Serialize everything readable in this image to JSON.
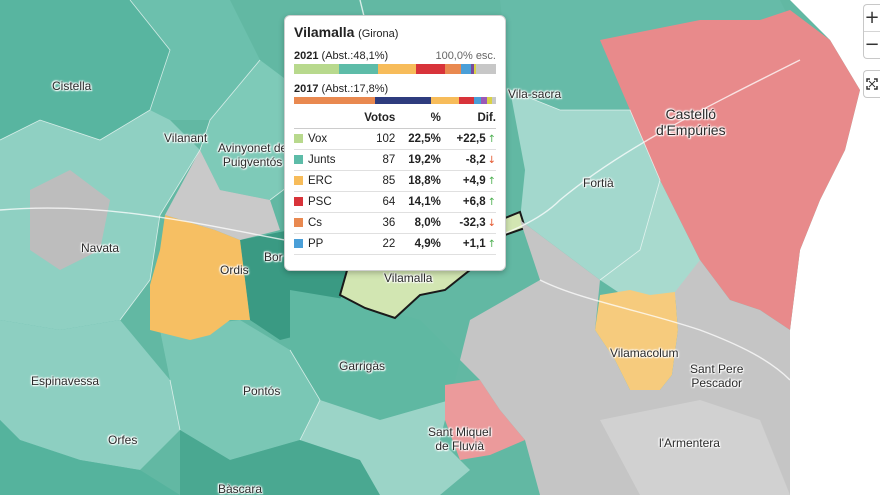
{
  "colors": {
    "vox": "#b8d98d",
    "junts": "#5dbca8",
    "erc": "#f7bc5a",
    "psc": "#d8333a",
    "cs": "#e98950",
    "pp": "#4a9fd8",
    "other": "#c7c7c7",
    "sea": "#ffffff",
    "up_arrow": "#4caf50",
    "down_arrow": "#e4572e"
  },
  "map": {
    "labels": {
      "cistella": "Cistella",
      "vila_sacra": "Vila-sacra",
      "castello": "Castelló\nd'Empúries",
      "vilanant": "Vilanant",
      "avinyonet": "Avinyonet de\nPuigventós",
      "fortia": "Fortià",
      "navata": "Navata",
      "ordis": "Ordis",
      "borrassa": "Bor",
      "vilamalla": "Vilamalla",
      "vilamacolum": "Vilamacolum",
      "garrigas": "Garrigàs",
      "espinavessa": "Espinavessa",
      "pontos": "Pontós",
      "sant_pere": "Sant Pere\nPescador",
      "orfes": "Orfes",
      "sant_miquel": "Sant Miquel\nde Fluvià",
      "armentera": "l'Armentera",
      "bascara": "Bàscara"
    }
  },
  "controls": {
    "zoom_in": "+",
    "zoom_out": "−",
    "fullscreen_icon": "fullscreen-icon"
  },
  "tooltip": {
    "municipality": "Vilamalla",
    "province": "(Girona)",
    "y2021": {
      "label": "2021",
      "abst": "(Abst.:48,1%)",
      "scrutinized": "100,0% esc."
    },
    "y2017": {
      "label": "2017",
      "abst": "(Abst.:17,8%)"
    },
    "headers": {
      "party": "",
      "votes": "Votos",
      "pct": "%",
      "dif": "Dif."
    },
    "rows": [
      {
        "party": "Vox",
        "votes": "102",
        "pct": "22,5%",
        "dif": "+22,5",
        "trend": "up",
        "color": "#b8d98d"
      },
      {
        "party": "Junts",
        "votes": "87",
        "pct": "19,2%",
        "dif": "-8,2",
        "trend": "down",
        "color": "#5dbca8"
      },
      {
        "party": "ERC",
        "votes": "85",
        "pct": "18,8%",
        "dif": "+4,9",
        "trend": "up",
        "color": "#f7bc5a"
      },
      {
        "party": "PSC",
        "votes": "64",
        "pct": "14,1%",
        "dif": "+6,8",
        "trend": "up",
        "color": "#d8333a"
      },
      {
        "party": "Cs",
        "votes": "36",
        "pct": "8,0%",
        "dif": "-32,3",
        "trend": "down",
        "color": "#e98950"
      },
      {
        "party": "PP",
        "votes": "22",
        "pct": "4,9%",
        "dif": "+1,1",
        "trend": "up",
        "color": "#4a9fd8"
      }
    ],
    "bar_2021": [
      {
        "color": "#b8d98d",
        "share": 22.5
      },
      {
        "color": "#5dbca8",
        "share": 19.2
      },
      {
        "color": "#f7bc5a",
        "share": 18.8
      },
      {
        "color": "#d8333a",
        "share": 14.1
      },
      {
        "color": "#e98950",
        "share": 8.0
      },
      {
        "color": "#4a9fd8",
        "share": 4.9
      },
      {
        "color": "#7b4a9b",
        "share": 1.5
      },
      {
        "color": "#d9d247",
        "share": 1.2
      },
      {
        "color": "#c7c7c7",
        "share": 9.8
      }
    ],
    "bar_2017": [
      {
        "color": "#e98950",
        "share": 40.3
      },
      {
        "color": "#2e3c7e",
        "share": 27.4
      },
      {
        "color": "#f7bc5a",
        "share": 13.9
      },
      {
        "color": "#d8333a",
        "share": 7.3
      },
      {
        "color": "#4a9fd8",
        "share": 3.8
      },
      {
        "color": "#9b59b6",
        "share": 3.0
      },
      {
        "color": "#d9d247",
        "share": 2.3
      },
      {
        "color": "#c7c7c7",
        "share": 2.0
      }
    ]
  }
}
